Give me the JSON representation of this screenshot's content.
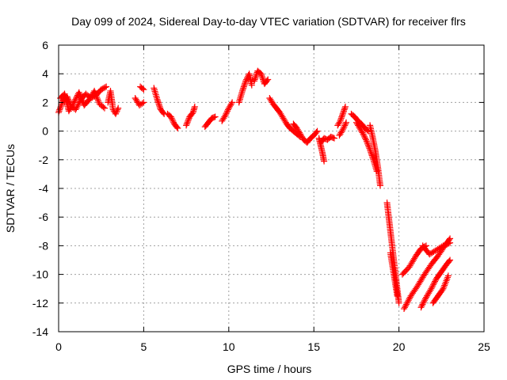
{
  "chart_data": {
    "type": "scatter",
    "title": "Day 099 of 2024, Sidereal Day-to-day VTEC variation (SDTVAR) for receiver flrs",
    "xlabel": "GPS time / hours",
    "ylabel": "SDTVAR / TECUs",
    "xlim": [
      0,
      25
    ],
    "ylim": [
      -14,
      6
    ],
    "xticks": [
      0,
      5,
      10,
      15,
      20,
      25
    ],
    "yticks": [
      -14,
      -12,
      -10,
      -8,
      -6,
      -4,
      -2,
      0,
      2,
      4,
      6
    ],
    "grid": true,
    "marker": "plus",
    "color": "#ff0000",
    "series": [
      {
        "name": "SDTVAR",
        "segments": [
          {
            "x": [
              0.0,
              0.25,
              0.5,
              0.75,
              1.0,
              1.3,
              1.6,
              1.9,
              2.2,
              2.5,
              2.8
            ],
            "y": [
              1.3,
              2.1,
              2.4,
              1.7,
              1.5,
              2.2,
              2.6,
              2.3,
              2.5,
              2.9,
              3.1
            ]
          },
          {
            "x": [
              0.1,
              0.35,
              0.6,
              0.9,
              1.2,
              1.5,
              1.8,
              2.1,
              2.4,
              2.7
            ],
            "y": [
              2.3,
              2.6,
              1.4,
              2.0,
              2.7,
              1.8,
              2.2,
              2.8,
              1.9,
              1.6
            ]
          },
          {
            "x": [
              2.9,
              3.05,
              3.2,
              3.35,
              3.5
            ],
            "y": [
              2.0,
              2.8,
              1.5,
              1.2,
              1.6
            ]
          },
          {
            "x": [
              4.5,
              4.75,
              5.0
            ],
            "y": [
              2.3,
              1.8,
              2.0
            ]
          },
          {
            "x": [
              4.8,
              5.0
            ],
            "y": [
              3.1,
              2.9
            ]
          },
          {
            "x": [
              5.6,
              5.8,
              6.0,
              6.2
            ],
            "y": [
              3.0,
              2.2,
              1.5,
              1.2
            ]
          },
          {
            "x": [
              6.4,
              6.6,
              6.8,
              7.0
            ],
            "y": [
              1.2,
              1.0,
              0.5,
              0.2
            ]
          },
          {
            "x": [
              7.5,
              7.7,
              7.9,
              8.0
            ],
            "y": [
              0.4,
              1.0,
              1.3,
              1.7
            ]
          },
          {
            "x": [
              8.6,
              8.8,
              9.0,
              9.2
            ],
            "y": [
              0.3,
              0.6,
              0.9,
              1.0
            ]
          },
          {
            "x": [
              9.6,
              9.8,
              10.0,
              10.2
            ],
            "y": [
              0.7,
              1.1,
              1.6,
              2.0
            ]
          },
          {
            "x": [
              10.6,
              10.8,
              11.0,
              11.2,
              11.35
            ],
            "y": [
              2.0,
              2.8,
              3.5,
              4.0,
              3.2
            ]
          },
          {
            "x": [
              11.5,
              11.7,
              11.9,
              12.1,
              12.3
            ],
            "y": [
              3.5,
              4.2,
              4.0,
              3.3,
              3.6
            ]
          },
          {
            "x": [
              12.4,
              12.6,
              12.8,
              13.0,
              13.2,
              13.4,
              13.6,
              13.8,
              14.0,
              14.2
            ],
            "y": [
              2.3,
              1.9,
              1.6,
              1.3,
              0.9,
              0.5,
              0.2,
              0.0,
              -0.2,
              -0.4
            ]
          },
          {
            "x": [
              13.8,
              14.0,
              14.2,
              14.4,
              14.6,
              14.8,
              15.0,
              15.2
            ],
            "y": [
              0.5,
              0.2,
              -0.2,
              -0.6,
              -0.8,
              -0.5,
              -0.3,
              0.0
            ]
          },
          {
            "x": [
              15.3,
              15.4,
              15.5,
              15.6
            ],
            "y": [
              -0.5,
              -1.0,
              -1.5,
              -2.1
            ]
          },
          {
            "x": [
              15.4,
              15.6,
              15.8,
              16.0,
              16.2
            ],
            "y": [
              -0.8,
              -0.5,
              -0.6,
              -0.4,
              -0.5
            ]
          },
          {
            "x": [
              16.4,
              16.55,
              16.7,
              16.85
            ],
            "y": [
              0.4,
              0.7,
              1.2,
              1.7
            ]
          },
          {
            "x": [
              16.5,
              16.7,
              16.9
            ],
            "y": [
              -0.3,
              0.1,
              0.6
            ]
          },
          {
            "x": [
              17.2,
              17.4,
              17.6,
              17.8,
              18.0,
              18.2
            ],
            "y": [
              1.2,
              1.0,
              0.7,
              0.5,
              0.2,
              0.0
            ]
          },
          {
            "x": [
              17.5,
              17.7,
              17.9,
              18.1,
              18.3,
              18.5,
              18.7
            ],
            "y": [
              0.6,
              0.2,
              -0.2,
              -0.7,
              -1.3,
              -2.0,
              -2.8
            ]
          },
          {
            "x": [
              18.3,
              18.45,
              18.6,
              18.75,
              18.9
            ],
            "y": [
              0.4,
              -0.4,
              -1.3,
              -2.4,
              -3.8
            ]
          },
          {
            "x": [
              19.3,
              19.45,
              19.6,
              19.75,
              19.9,
              20.0
            ],
            "y": [
              -5.0,
              -6.5,
              -8.0,
              -9.5,
              -11.0,
              -12.0
            ]
          },
          {
            "x": [
              19.5,
              19.7,
              19.9
            ],
            "y": [
              -8.5,
              -10.0,
              -11.5
            ]
          },
          {
            "x": [
              20.2,
              20.6,
              21.0,
              21.3,
              21.6
            ],
            "y": [
              -10.0,
              -9.5,
              -8.7,
              -8.2,
              -8.0
            ]
          },
          {
            "x": [
              20.3,
              20.7,
              21.1,
              21.5,
              21.9,
              22.3,
              22.7,
              23.0
            ],
            "y": [
              -12.4,
              -11.5,
              -10.8,
              -10.0,
              -9.3,
              -8.7,
              -8.0,
              -7.5
            ]
          },
          {
            "x": [
              21.4,
              21.8,
              22.2,
              22.6,
              23.0
            ],
            "y": [
              -8.0,
              -8.6,
              -8.3,
              -8.0,
              -7.8
            ]
          },
          {
            "x": [
              21.3,
              21.6,
              21.9,
              22.2,
              22.5,
              22.8,
              23.0
            ],
            "y": [
              -12.3,
              -11.6,
              -11.0,
              -10.3,
              -9.8,
              -9.3,
              -9.0
            ]
          },
          {
            "x": [
              22.0,
              22.3,
              22.6,
              22.9
            ],
            "y": [
              -12.0,
              -11.5,
              -11.0,
              -10.1
            ]
          }
        ]
      }
    ]
  }
}
